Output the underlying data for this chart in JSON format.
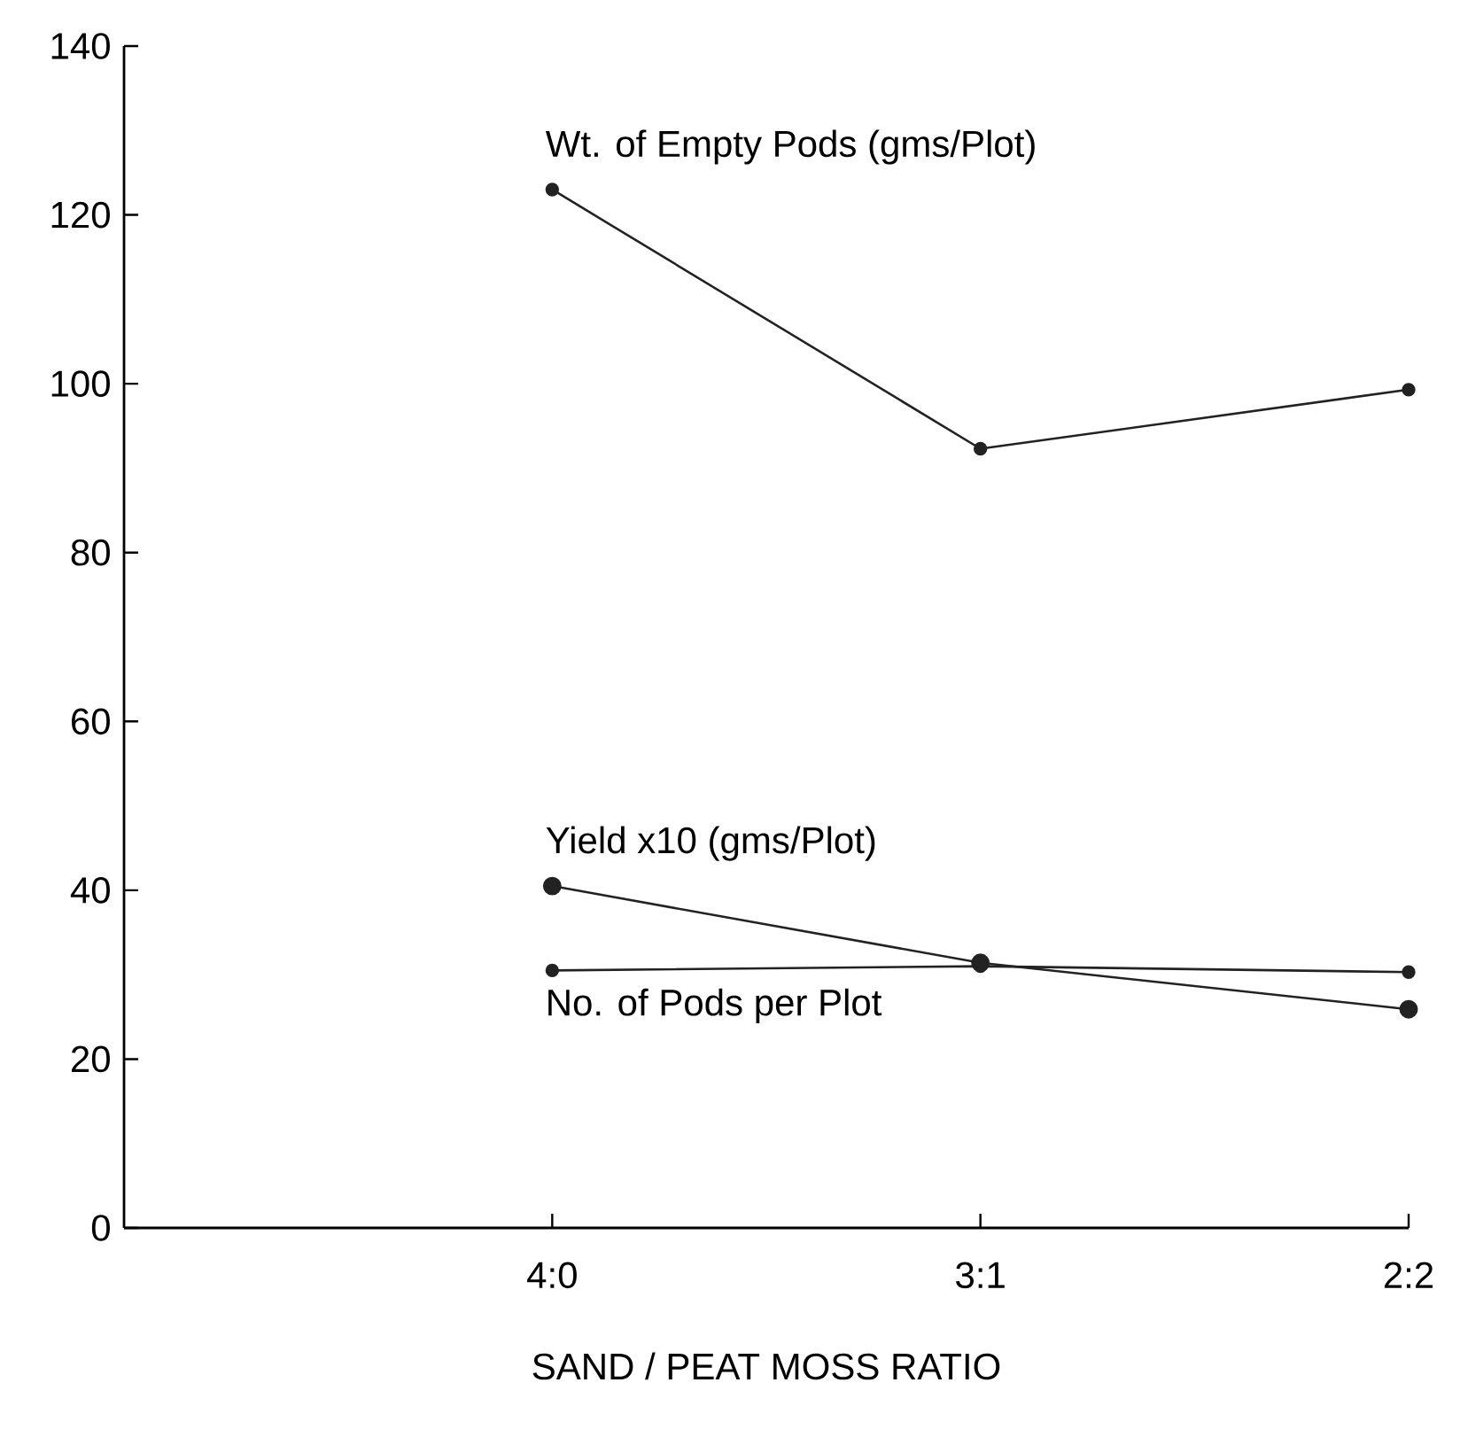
{
  "chart_data": {
    "type": "line",
    "categories": [
      "4:0",
      "3:1",
      "2:2"
    ],
    "xlabel": "SAND / PEAT MOSS RATIO",
    "series": [
      {
        "name": "Wt. of Empty Pods (gms/Plot)",
        "color": "#222222",
        "values": [
          123,
          92.3,
          99.3
        ]
      },
      {
        "name": "Yield x10 (gms/Plot)",
        "color": "#222222",
        "values": [
          40.5,
          31.4,
          25.9
        ]
      },
      {
        "name": "No. of Pods per Plot",
        "color": "#222222",
        "values": [
          30.5,
          31,
          30.3
        ]
      }
    ],
    "ylim": [
      0,
      140
    ],
    "yticks": [
      0,
      20,
      40,
      60,
      80,
      100,
      120,
      140
    ],
    "marker": "circle",
    "line_style": "solid",
    "legend": false
  }
}
